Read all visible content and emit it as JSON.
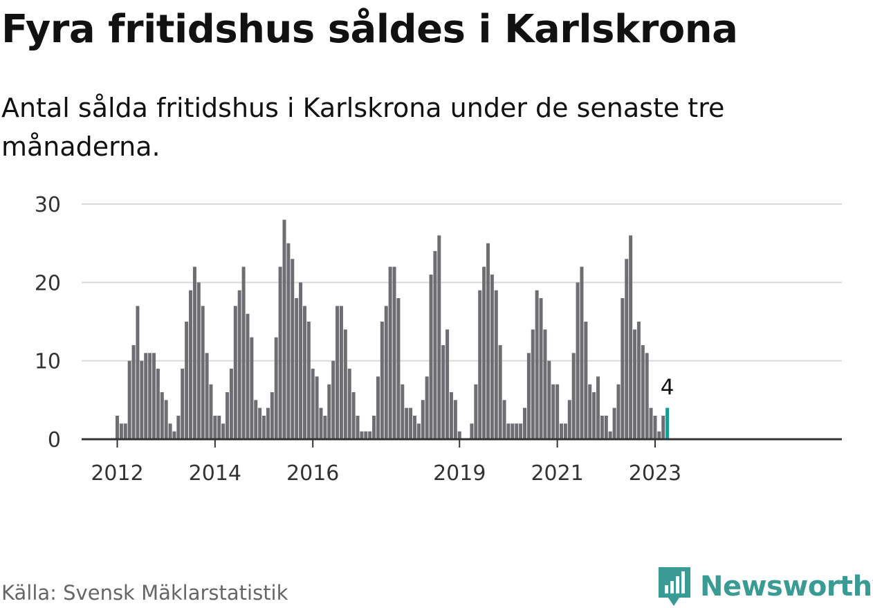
{
  "title": "Fyra fritidshus såldes i Karlskrona",
  "subtitle": "Antal sålda fritidshus i Karlskrona under de senaste tre månaderna.",
  "source": "Källa: Svensk Mäklarstatistik",
  "brand": {
    "name": "Newsworthy",
    "icon": "newsworthy-logo-icon",
    "color": "#3a9a94"
  },
  "colors": {
    "bar": "#6e6d72",
    "highlight": "#1a9a96",
    "grid": "#d9d9d9",
    "axis": "#333333"
  },
  "chart_data": {
    "type": "bar",
    "xlabel": "",
    "ylabel": "",
    "ylim": [
      0,
      30
    ],
    "yticks": [
      0,
      10,
      20,
      30
    ],
    "grid": true,
    "x_tick_labels": [
      {
        "label": "2012",
        "index": 0
      },
      {
        "label": "2014",
        "index": 24
      },
      {
        "label": "2016",
        "index": 48
      },
      {
        "label": "2019",
        "index": 84
      },
      {
        "label": "2021",
        "index": 108
      },
      {
        "label": "2023",
        "index": 132
      }
    ],
    "start": "2012-01",
    "frequency": "monthly",
    "values": [
      3,
      2,
      2,
      10,
      12,
      17,
      10,
      11,
      11,
      11,
      9,
      6,
      5,
      2,
      1,
      3,
      9,
      15,
      19,
      22,
      20,
      17,
      11,
      7,
      3,
      3,
      2,
      6,
      9,
      17,
      19,
      22,
      16,
      13,
      5,
      4,
      3,
      4,
      6,
      13,
      22,
      28,
      25,
      23,
      18,
      20,
      17,
      15,
      9,
      8,
      4,
      3,
      7,
      10,
      17,
      17,
      14,
      9,
      6,
      3,
      1,
      1,
      1,
      3,
      8,
      15,
      17,
      22,
      22,
      18,
      7,
      4,
      4,
      3,
      2,
      5,
      8,
      21,
      24,
      26,
      12,
      14,
      6,
      5,
      1,
      0,
      0,
      2,
      7,
      19,
      22,
      25,
      21,
      19,
      12,
      5,
      2,
      2,
      2,
      2,
      4,
      11,
      14,
      19,
      18,
      14,
      10,
      7,
      7,
      2,
      2,
      5,
      11,
      20,
      22,
      15,
      7,
      6,
      8,
      3,
      3,
      1,
      4,
      7,
      18,
      23,
      26,
      14,
      15,
      12,
      11,
      4,
      3,
      1,
      3,
      4
    ],
    "highlight": {
      "index": 135,
      "value": 4,
      "label": "4"
    }
  }
}
